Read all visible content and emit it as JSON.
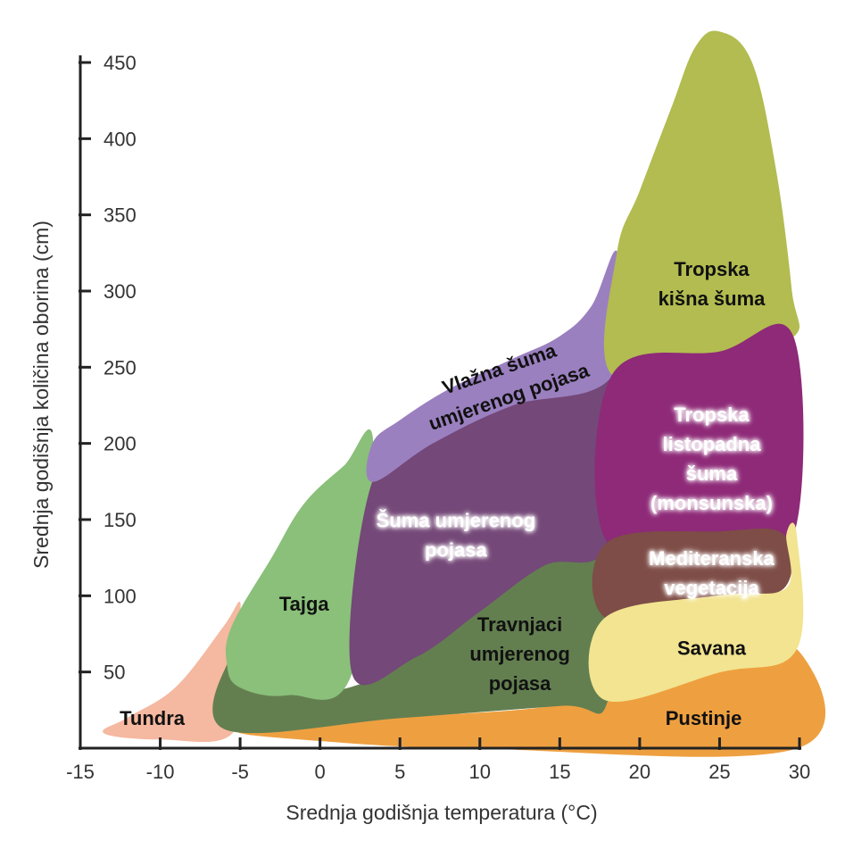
{
  "chart_data": {
    "type": "area",
    "title": "",
    "xlabel": "Srednja godišnja temperatura (°C)",
    "ylabel": "Srednja godišnja količina oborina (cm)",
    "xlim": [
      -15,
      30
    ],
    "ylim": [
      0,
      450
    ],
    "xticks": [
      -15,
      -10,
      -5,
      0,
      5,
      10,
      15,
      20,
      25,
      30
    ],
    "yticks": [
      50,
      100,
      150,
      200,
      250,
      300,
      350,
      400,
      450
    ],
    "grid": false,
    "regions": [
      {
        "name": "Tundra",
        "color": "#f5b8a0",
        "label_lines": [
          "Tundra"
        ],
        "label_at": [
          -10.5,
          20
        ],
        "polygon": [
          [
            -13.5,
            10
          ],
          [
            -12,
            20
          ],
          [
            -9,
            40
          ],
          [
            -6,
            80
          ],
          [
            -5,
            95
          ],
          [
            -5.5,
            60
          ],
          [
            -5.5,
            10
          ],
          [
            -10,
            6
          ]
        ]
      },
      {
        "name": "Pustinje",
        "color": "#eea040",
        "label_lines": [
          "Pustinje"
        ],
        "label_at": [
          24,
          20
        ],
        "polygon": [
          [
            -5,
            12
          ],
          [
            5,
            20
          ],
          [
            15,
            28
          ],
          [
            25,
            50
          ],
          [
            29.8,
            65
          ],
          [
            29.8,
            0
          ],
          [
            10,
            0
          ],
          [
            0,
            5
          ]
        ]
      },
      {
        "name": "Travnjaci umjerenog pojasa",
        "color": "#637f50",
        "label_lines": [
          "Travnjaci",
          "umjerenog",
          "pojasa"
        ],
        "label_at": [
          12.5,
          62
        ],
        "polygon": [
          [
            -5.8,
            55
          ],
          [
            -5,
            40
          ],
          [
            -2,
            35
          ],
          [
            2,
            40
          ],
          [
            6,
            60
          ],
          [
            10,
            90
          ],
          [
            14,
            120
          ],
          [
            18,
            135
          ],
          [
            18,
            32
          ],
          [
            15,
            28
          ],
          [
            5,
            20
          ],
          [
            -5.8,
            12
          ]
        ]
      },
      {
        "name": "Tajga",
        "color": "#8ac07a",
        "label_lines": [
          "Tajga"
        ],
        "label_at": [
          -1,
          95
        ],
        "polygon": [
          [
            -5.8,
            55
          ],
          [
            -5.5,
            80
          ],
          [
            -3,
            125
          ],
          [
            -1,
            160
          ],
          [
            1.5,
            185
          ],
          [
            3.3,
            200
          ],
          [
            2,
            50
          ],
          [
            -2,
            35
          ],
          [
            -5,
            40
          ]
        ]
      },
      {
        "name": "Šuma umjerenog pojasa",
        "color": "#744878",
        "label_lines": [
          "Šuma umjerenog",
          "pojasa"
        ],
        "label_at": [
          8.5,
          140
        ],
        "polygon": [
          [
            2,
            50
          ],
          [
            3.3,
            175
          ],
          [
            7,
            200
          ],
          [
            12,
            225
          ],
          [
            18,
            245
          ],
          [
            18,
            135
          ],
          [
            14,
            120
          ],
          [
            10,
            90
          ],
          [
            6,
            60
          ]
        ]
      },
      {
        "name": "Vlažna šuma umjerenog pojasa",
        "color": "#9b80c0",
        "label_lines": [
          "Vlažna šuma",
          "umjerenog pojasa"
        ],
        "label_at": [
          11.5,
          240
        ],
        "polygon": [
          [
            3.3,
            175
          ],
          [
            3.3,
            200
          ],
          [
            5,
            215
          ],
          [
            8,
            235
          ],
          [
            12,
            255
          ],
          [
            15,
            270
          ],
          [
            17,
            290
          ],
          [
            18.6,
            325
          ],
          [
            18.3,
            245
          ],
          [
            12,
            225
          ],
          [
            7,
            200
          ]
        ]
      },
      {
        "name": "Tropska kišna šuma",
        "color": "#b2bc50",
        "label_lines": [
          "Tropska",
          "kišna šuma"
        ],
        "label_at": [
          24.5,
          305
        ],
        "polygon": [
          [
            18.6,
            325
          ],
          [
            20,
            365
          ],
          [
            22,
            420
          ],
          [
            23.5,
            460
          ],
          [
            25,
            470
          ],
          [
            27,
            450
          ],
          [
            28.5,
            380
          ],
          [
            29.5,
            300
          ],
          [
            29.6,
            270
          ],
          [
            25,
            260
          ],
          [
            18.3,
            245
          ]
        ]
      },
      {
        "name": "Tropska listopadna šuma (monsunska)",
        "color": "#8e2a78",
        "label_lines": [
          "Tropska",
          "listopadna",
          "šuma",
          "(monsunska)"
        ],
        "label_at": [
          24.5,
          190
        ],
        "polygon": [
          [
            18.3,
            245
          ],
          [
            25,
            260
          ],
          [
            29.6,
            270
          ],
          [
            29.6,
            140
          ],
          [
            25,
            142
          ],
          [
            18,
            135
          ]
        ]
      },
      {
        "name": "Mediteranska vegetacija",
        "color": "#7e4d47",
        "label_lines": [
          "Mediteranska",
          "vegetacija"
        ],
        "label_at": [
          24.5,
          115
        ],
        "polygon": [
          [
            18,
            135
          ],
          [
            25,
            142
          ],
          [
            29,
            140
          ],
          [
            29,
            105
          ],
          [
            25,
            100
          ],
          [
            18,
            85
          ]
        ]
      },
      {
        "name": "Savana",
        "color": "#f2e490",
        "label_lines": [
          "Savana"
        ],
        "label_at": [
          24.5,
          66
        ],
        "polygon": [
          [
            17.8,
            32
          ],
          [
            17.8,
            85
          ],
          [
            25,
            100
          ],
          [
            29.2,
            105
          ],
          [
            29.2,
            140
          ],
          [
            29.8,
            140
          ],
          [
            29.8,
            65
          ],
          [
            25,
            50
          ]
        ]
      }
    ]
  }
}
